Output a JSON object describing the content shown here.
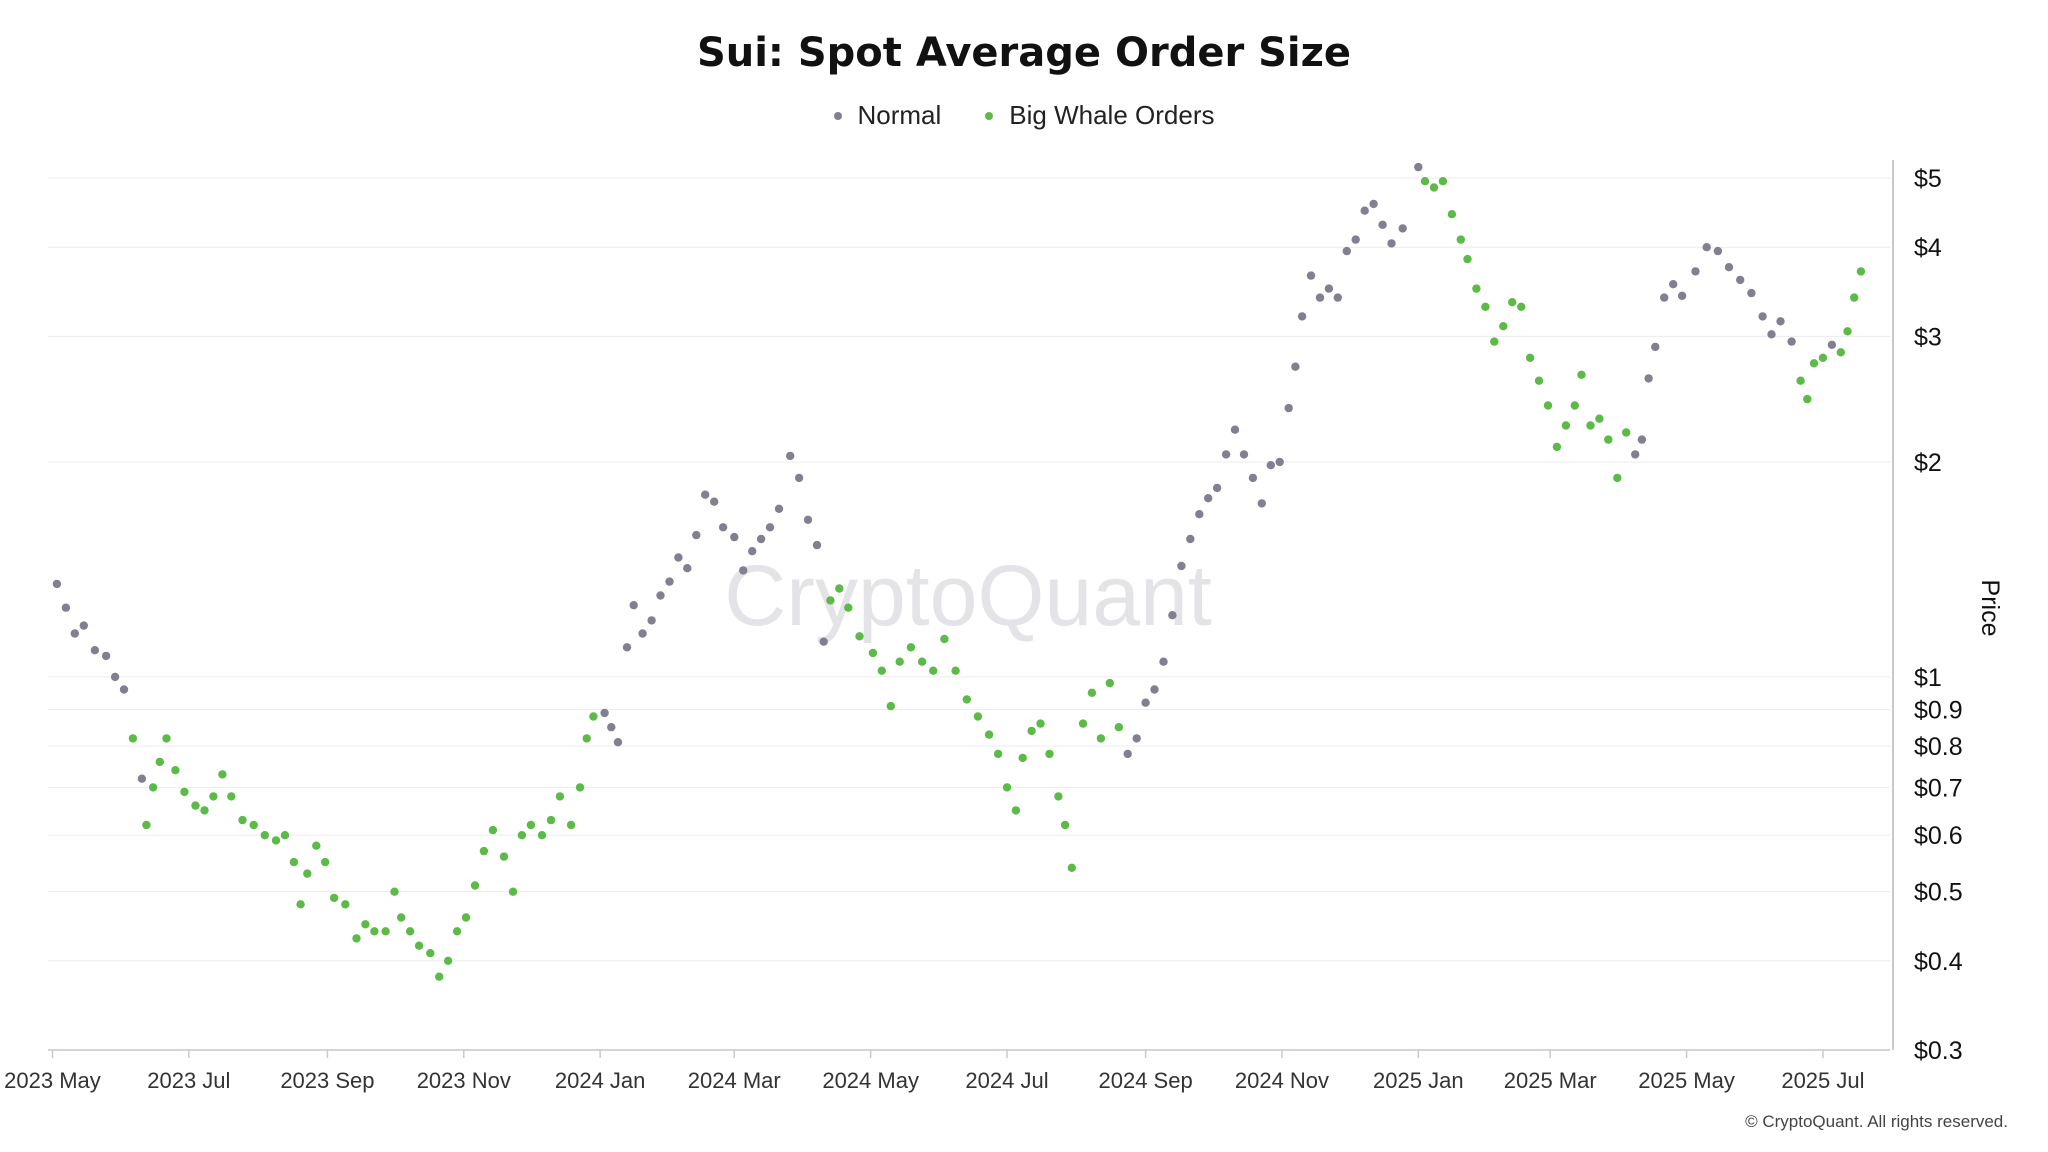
{
  "chart_data": {
    "type": "scatter",
    "title": "Sui: Spot Average Order Size",
    "xlabel": "",
    "ylabel": "Price",
    "y_scale": "log",
    "ylim": [
      0.3,
      5.3
    ],
    "xlim": [
      "2023-04-29",
      "2025-07-31"
    ],
    "y_ticks": [
      0.3,
      0.4,
      0.5,
      0.6,
      0.7,
      0.8,
      0.9,
      1,
      2,
      3,
      4,
      5
    ],
    "y_tick_labels": [
      "$0.3",
      "$0.4",
      "$0.5",
      "$0.6",
      "$0.7",
      "$0.8",
      "$0.9",
      "$1",
      "$2",
      "$3",
      "$4",
      "$5"
    ],
    "x_ticks": [
      "2023-05-01",
      "2023-07-01",
      "2023-09-01",
      "2023-11-01",
      "2024-01-01",
      "2024-03-01",
      "2024-05-01",
      "2024-07-01",
      "2024-09-01",
      "2024-11-01",
      "2025-01-01",
      "2025-03-01",
      "2025-05-01",
      "2025-07-01"
    ],
    "x_tick_labels": [
      "2023 May",
      "2023 Jul",
      "2023 Sep",
      "2023 Nov",
      "2024 Jan",
      "2024 Mar",
      "2024 May",
      "2024 Jul",
      "2024 Sep",
      "2024 Nov",
      "2025 Jan",
      "2025 Mar",
      "2025 May",
      "2025 Jul"
    ],
    "grid": true,
    "legend_position": "top-center",
    "series": [
      {
        "name": "Normal",
        "color": "#808090"
      },
      {
        "name": "Big Whale Orders",
        "color": "#5cba47"
      }
    ],
    "points": [
      [
        "2023-05-03",
        1.35,
        0
      ],
      [
        "2023-05-07",
        1.25,
        0
      ],
      [
        "2023-05-11",
        1.15,
        0
      ],
      [
        "2023-05-15",
        1.18,
        0
      ],
      [
        "2023-05-20",
        1.09,
        0
      ],
      [
        "2023-05-25",
        1.07,
        0
      ],
      [
        "2023-05-29",
        1.0,
        0
      ],
      [
        "2023-06-02",
        0.96,
        0
      ],
      [
        "2023-06-06",
        0.82,
        1
      ],
      [
        "2023-06-10",
        0.72,
        0
      ],
      [
        "2023-06-12",
        0.62,
        1
      ],
      [
        "2023-06-15",
        0.7,
        1
      ],
      [
        "2023-06-18",
        0.76,
        1
      ],
      [
        "2023-06-21",
        0.82,
        1
      ],
      [
        "2023-06-25",
        0.74,
        1
      ],
      [
        "2023-06-29",
        0.69,
        1
      ],
      [
        "2023-07-04",
        0.66,
        1
      ],
      [
        "2023-07-08",
        0.65,
        1
      ],
      [
        "2023-07-12",
        0.68,
        1
      ],
      [
        "2023-07-16",
        0.73,
        1
      ],
      [
        "2023-07-20",
        0.68,
        1
      ],
      [
        "2023-07-25",
        0.63,
        1
      ],
      [
        "2023-07-30",
        0.62,
        1
      ],
      [
        "2023-08-04",
        0.6,
        1
      ],
      [
        "2023-08-09",
        0.59,
        1
      ],
      [
        "2023-08-13",
        0.6,
        1
      ],
      [
        "2023-08-17",
        0.55,
        1
      ],
      [
        "2023-08-20",
        0.48,
        1
      ],
      [
        "2023-08-23",
        0.53,
        1
      ],
      [
        "2023-08-27",
        0.58,
        1
      ],
      [
        "2023-08-31",
        0.55,
        1
      ],
      [
        "2023-09-04",
        0.49,
        1
      ],
      [
        "2023-09-09",
        0.48,
        1
      ],
      [
        "2023-09-14",
        0.43,
        1
      ],
      [
        "2023-09-18",
        0.45,
        1
      ],
      [
        "2023-09-22",
        0.44,
        1
      ],
      [
        "2023-09-27",
        0.44,
        1
      ],
      [
        "2023-10-01",
        0.5,
        1
      ],
      [
        "2023-10-04",
        0.46,
        1
      ],
      [
        "2023-10-08",
        0.44,
        1
      ],
      [
        "2023-10-12",
        0.42,
        1
      ],
      [
        "2023-10-17",
        0.41,
        1
      ],
      [
        "2023-10-21",
        0.38,
        1
      ],
      [
        "2023-10-25",
        0.4,
        1
      ],
      [
        "2023-10-29",
        0.44,
        1
      ],
      [
        "2023-11-02",
        0.46,
        1
      ],
      [
        "2023-11-06",
        0.51,
        1
      ],
      [
        "2023-11-10",
        0.57,
        1
      ],
      [
        "2023-11-14",
        0.61,
        1
      ],
      [
        "2023-11-19",
        0.56,
        1
      ],
      [
        "2023-11-23",
        0.5,
        1
      ],
      [
        "2023-11-27",
        0.6,
        1
      ],
      [
        "2023-12-01",
        0.62,
        1
      ],
      [
        "2023-12-06",
        0.6,
        1
      ],
      [
        "2023-12-10",
        0.63,
        1
      ],
      [
        "2023-12-14",
        0.68,
        1
      ],
      [
        "2023-12-19",
        0.62,
        1
      ],
      [
        "2023-12-23",
        0.7,
        1
      ],
      [
        "2023-12-26",
        0.82,
        1
      ],
      [
        "2023-12-29",
        0.88,
        1
      ],
      [
        "2024-01-03",
        0.89,
        0
      ],
      [
        "2024-01-06",
        0.85,
        0
      ],
      [
        "2024-01-09",
        0.81,
        0
      ],
      [
        "2024-01-13",
        1.1,
        0
      ],
      [
        "2024-01-16",
        1.26,
        0
      ],
      [
        "2024-01-20",
        1.15,
        0
      ],
      [
        "2024-01-24",
        1.2,
        0
      ],
      [
        "2024-01-28",
        1.3,
        0
      ],
      [
        "2024-02-01",
        1.36,
        0
      ],
      [
        "2024-02-05",
        1.47,
        0
      ],
      [
        "2024-02-09",
        1.42,
        0
      ],
      [
        "2024-02-13",
        1.58,
        0
      ],
      [
        "2024-02-17",
        1.8,
        0
      ],
      [
        "2024-02-21",
        1.76,
        0
      ],
      [
        "2024-02-25",
        1.62,
        0
      ],
      [
        "2024-03-01",
        1.57,
        0
      ],
      [
        "2024-03-05",
        1.41,
        0
      ],
      [
        "2024-03-09",
        1.5,
        0
      ],
      [
        "2024-03-13",
        1.56,
        0
      ],
      [
        "2024-03-17",
        1.62,
        0
      ],
      [
        "2024-03-21",
        1.72,
        0
      ],
      [
        "2024-03-26",
        2.04,
        0
      ],
      [
        "2024-03-30",
        1.9,
        0
      ],
      [
        "2024-04-03",
        1.66,
        0
      ],
      [
        "2024-04-07",
        1.53,
        0
      ],
      [
        "2024-04-10",
        1.12,
        0
      ],
      [
        "2024-04-13",
        1.28,
        1
      ],
      [
        "2024-04-17",
        1.33,
        1
      ],
      [
        "2024-04-21",
        1.25,
        1
      ],
      [
        "2024-04-26",
        1.14,
        1
      ],
      [
        "2024-05-02",
        1.08,
        1
      ],
      [
        "2024-05-06",
        1.02,
        1
      ],
      [
        "2024-05-10",
        0.91,
        1
      ],
      [
        "2024-05-14",
        1.05,
        1
      ],
      [
        "2024-05-19",
        1.1,
        1
      ],
      [
        "2024-05-24",
        1.05,
        1
      ],
      [
        "2024-05-29",
        1.02,
        1
      ],
      [
        "2024-06-03",
        1.13,
        1
      ],
      [
        "2024-06-08",
        1.02,
        1
      ],
      [
        "2024-06-13",
        0.93,
        1
      ],
      [
        "2024-06-18",
        0.88,
        1
      ],
      [
        "2024-06-23",
        0.83,
        1
      ],
      [
        "2024-06-27",
        0.78,
        1
      ],
      [
        "2024-07-01",
        0.7,
        1
      ],
      [
        "2024-07-05",
        0.65,
        1
      ],
      [
        "2024-07-08",
        0.77,
        1
      ],
      [
        "2024-07-12",
        0.84,
        1
      ],
      [
        "2024-07-16",
        0.86,
        1
      ],
      [
        "2024-07-20",
        0.78,
        1
      ],
      [
        "2024-07-24",
        0.68,
        1
      ],
      [
        "2024-07-27",
        0.62,
        1
      ],
      [
        "2024-07-30",
        0.54,
        1
      ],
      [
        "2024-08-04",
        0.86,
        1
      ],
      [
        "2024-08-08",
        0.95,
        1
      ],
      [
        "2024-08-12",
        0.82,
        1
      ],
      [
        "2024-08-16",
        0.98,
        1
      ],
      [
        "2024-08-20",
        0.85,
        1
      ],
      [
        "2024-08-24",
        0.78,
        0
      ],
      [
        "2024-08-28",
        0.82,
        0
      ],
      [
        "2024-09-01",
        0.92,
        0
      ],
      [
        "2024-09-05",
        0.96,
        0
      ],
      [
        "2024-09-09",
        1.05,
        0
      ],
      [
        "2024-09-13",
        1.22,
        0
      ],
      [
        "2024-09-17",
        1.43,
        0
      ],
      [
        "2024-09-21",
        1.56,
        0
      ],
      [
        "2024-09-25",
        1.69,
        0
      ],
      [
        "2024-09-29",
        1.78,
        0
      ],
      [
        "2024-10-03",
        1.84,
        0
      ],
      [
        "2024-10-07",
        2.05,
        0
      ],
      [
        "2024-10-11",
        2.22,
        0
      ],
      [
        "2024-10-15",
        2.05,
        0
      ],
      [
        "2024-10-19",
        1.9,
        0
      ],
      [
        "2024-10-23",
        1.75,
        0
      ],
      [
        "2024-10-27",
        1.98,
        0
      ],
      [
        "2024-10-31",
        2.0,
        0
      ],
      [
        "2024-11-04",
        2.38,
        0
      ],
      [
        "2024-11-07",
        2.72,
        0
      ],
      [
        "2024-11-10",
        3.2,
        0
      ],
      [
        "2024-11-14",
        3.65,
        0
      ],
      [
        "2024-11-18",
        3.4,
        0
      ],
      [
        "2024-11-22",
        3.5,
        0
      ],
      [
        "2024-11-26",
        3.4,
        0
      ],
      [
        "2024-11-30",
        3.95,
        0
      ],
      [
        "2024-12-04",
        4.1,
        0
      ],
      [
        "2024-12-08",
        4.5,
        0
      ],
      [
        "2024-12-12",
        4.6,
        0
      ],
      [
        "2024-12-16",
        4.3,
        0
      ],
      [
        "2024-12-20",
        4.05,
        0
      ],
      [
        "2024-12-25",
        4.25,
        0
      ],
      [
        "2025-01-01",
        5.18,
        0
      ],
      [
        "2025-01-04",
        4.95,
        1
      ],
      [
        "2025-01-08",
        4.85,
        1
      ],
      [
        "2025-01-12",
        4.95,
        1
      ],
      [
        "2025-01-16",
        4.45,
        1
      ],
      [
        "2025-01-20",
        4.1,
        1
      ],
      [
        "2025-01-23",
        3.85,
        1
      ],
      [
        "2025-01-27",
        3.5,
        1
      ],
      [
        "2025-01-31",
        3.3,
        1
      ],
      [
        "2025-02-04",
        2.95,
        1
      ],
      [
        "2025-02-08",
        3.1,
        1
      ],
      [
        "2025-02-12",
        3.35,
        1
      ],
      [
        "2025-02-16",
        3.3,
        1
      ],
      [
        "2025-02-20",
        2.8,
        1
      ],
      [
        "2025-02-24",
        2.6,
        1
      ],
      [
        "2025-02-28",
        2.4,
        1
      ],
      [
        "2025-03-04",
        2.1,
        1
      ],
      [
        "2025-03-08",
        2.25,
        1
      ],
      [
        "2025-03-12",
        2.4,
        1
      ],
      [
        "2025-03-15",
        2.65,
        1
      ],
      [
        "2025-03-19",
        2.25,
        1
      ],
      [
        "2025-03-23",
        2.3,
        1
      ],
      [
        "2025-03-27",
        2.15,
        1
      ],
      [
        "2025-03-31",
        1.9,
        1
      ],
      [
        "2025-04-04",
        2.2,
        1
      ],
      [
        "2025-04-08",
        2.05,
        0
      ],
      [
        "2025-04-11",
        2.15,
        0
      ],
      [
        "2025-04-14",
        2.62,
        0
      ],
      [
        "2025-04-17",
        2.9,
        0
      ],
      [
        "2025-04-21",
        3.4,
        0
      ],
      [
        "2025-04-25",
        3.55,
        0
      ],
      [
        "2025-04-29",
        3.42,
        0
      ],
      [
        "2025-05-05",
        3.7,
        0
      ],
      [
        "2025-05-10",
        4.0,
        0
      ],
      [
        "2025-05-15",
        3.95,
        0
      ],
      [
        "2025-05-20",
        3.75,
        0
      ],
      [
        "2025-05-25",
        3.6,
        0
      ],
      [
        "2025-05-30",
        3.45,
        0
      ],
      [
        "2025-06-04",
        3.2,
        0
      ],
      [
        "2025-06-08",
        3.02,
        0
      ],
      [
        "2025-06-12",
        3.15,
        0
      ],
      [
        "2025-06-17",
        2.95,
        0
      ],
      [
        "2025-06-21",
        2.6,
        1
      ],
      [
        "2025-06-24",
        2.45,
        1
      ],
      [
        "2025-06-27",
        2.75,
        1
      ],
      [
        "2025-07-01",
        2.8,
        1
      ],
      [
        "2025-07-05",
        2.92,
        0
      ],
      [
        "2025-07-09",
        2.85,
        1
      ],
      [
        "2025-07-12",
        3.05,
        1
      ],
      [
        "2025-07-15",
        3.4,
        1
      ],
      [
        "2025-07-18",
        3.7,
        1
      ]
    ]
  },
  "watermark": "CryptoQuant",
  "credit": "© CryptoQuant. All rights reserved."
}
